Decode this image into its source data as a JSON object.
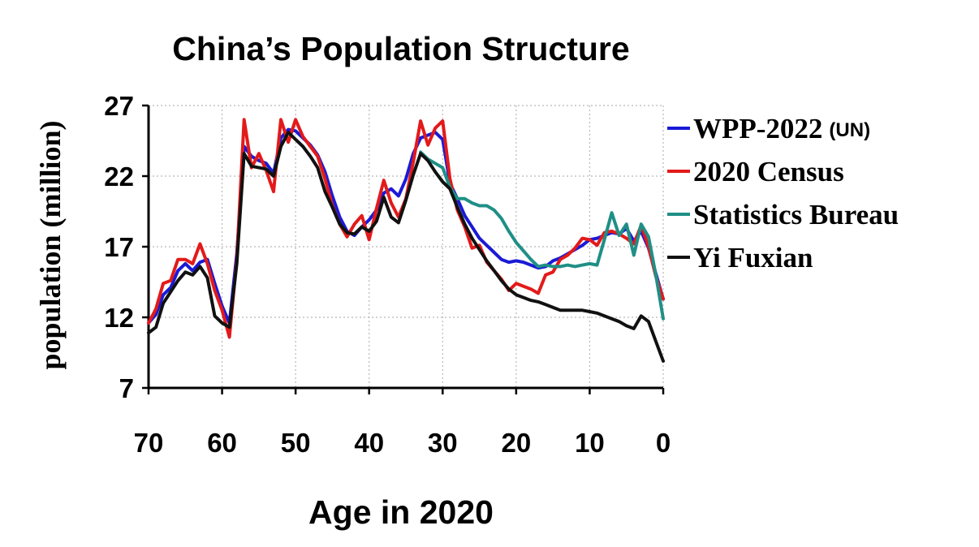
{
  "chart_data": {
    "type": "line",
    "title": "China’s Population Structure",
    "xlabel": "Age in 2020",
    "ylabel": "population (million)",
    "x_reversed": true,
    "xlim": [
      70,
      0
    ],
    "ylim": [
      7,
      27
    ],
    "xticks": [
      70,
      60,
      50,
      40,
      30,
      20,
      10,
      0
    ],
    "yticks": [
      7,
      12,
      17,
      22,
      27
    ],
    "grid": true,
    "legend_position": "right",
    "series": [
      {
        "name": "WPP-2022",
        "name_note": "(UN)",
        "color": "#1a1ad6",
        "points": [
          [
            70,
            11.6
          ],
          [
            69,
            12.2
          ],
          [
            68,
            13.6
          ],
          [
            67,
            14.1
          ],
          [
            66,
            15.3
          ],
          [
            65,
            15.8
          ],
          [
            64,
            15.3
          ],
          [
            63,
            15.9
          ],
          [
            62,
            16.1
          ],
          [
            61,
            14.4
          ],
          [
            60,
            12.8
          ],
          [
            59,
            11.6
          ],
          [
            58,
            16.5
          ],
          [
            57,
            24.1
          ],
          [
            56,
            23.4
          ],
          [
            55,
            23.1
          ],
          [
            54,
            22.9
          ],
          [
            53,
            22.2
          ],
          [
            52,
            24.7
          ],
          [
            51,
            25.3
          ],
          [
            50,
            25.2
          ],
          [
            49,
            24.7
          ],
          [
            48,
            24.2
          ],
          [
            47,
            23.5
          ],
          [
            46,
            22.3
          ],
          [
            45,
            20.6
          ],
          [
            44,
            19.1
          ],
          [
            43,
            18.1
          ],
          [
            42,
            17.8
          ],
          [
            41,
            18.4
          ],
          [
            40,
            18.9
          ],
          [
            39,
            19.6
          ],
          [
            38,
            20.8
          ],
          [
            37,
            21.1
          ],
          [
            36,
            20.6
          ],
          [
            35,
            21.8
          ],
          [
            34,
            23.6
          ],
          [
            33,
            24.7
          ],
          [
            32,
            24.9
          ],
          [
            31,
            25.1
          ],
          [
            30,
            24.6
          ],
          [
            29,
            21.5
          ],
          [
            28,
            20.4
          ],
          [
            27,
            19.2
          ],
          [
            26,
            18.4
          ],
          [
            25,
            17.6
          ],
          [
            24,
            17.1
          ],
          [
            23,
            16.6
          ],
          [
            22,
            16.1
          ],
          [
            21,
            15.9
          ],
          [
            20,
            16.0
          ],
          [
            19,
            15.9
          ],
          [
            18,
            15.7
          ],
          [
            17,
            15.5
          ],
          [
            16,
            15.6
          ],
          [
            15,
            16.0
          ],
          [
            14,
            16.2
          ],
          [
            13,
            16.5
          ],
          [
            12,
            16.8
          ],
          [
            11,
            17.1
          ],
          [
            10,
            17.5
          ],
          [
            9,
            17.6
          ],
          [
            8,
            17.8
          ],
          [
            7,
            18.0
          ],
          [
            6,
            17.9
          ],
          [
            5,
            18.3
          ],
          [
            4,
            17.4
          ],
          [
            3,
            18.1
          ],
          [
            2,
            16.9
          ],
          [
            1,
            15.1
          ],
          [
            0,
            13.3
          ]
        ]
      },
      {
        "name": "2020 Census",
        "color": "#e31a1a",
        "points": [
          [
            70,
            11.6
          ],
          [
            69,
            12.6
          ],
          [
            68,
            14.4
          ],
          [
            67,
            14.6
          ],
          [
            66,
            16.1
          ],
          [
            65,
            16.1
          ],
          [
            64,
            15.8
          ],
          [
            63,
            17.2
          ],
          [
            62,
            15.8
          ],
          [
            61,
            13.9
          ],
          [
            60,
            12.5
          ],
          [
            59,
            10.6
          ],
          [
            58,
            16.1
          ],
          [
            57,
            26.0
          ],
          [
            56,
            22.6
          ],
          [
            55,
            23.6
          ],
          [
            54,
            22.4
          ],
          [
            53,
            20.9
          ],
          [
            52,
            26.0
          ],
          [
            51,
            24.4
          ],
          [
            50,
            26.0
          ],
          [
            49,
            24.8
          ],
          [
            48,
            24.1
          ],
          [
            47,
            23.4
          ],
          [
            46,
            21.8
          ],
          [
            45,
            19.9
          ],
          [
            44,
            18.6
          ],
          [
            43,
            17.7
          ],
          [
            42,
            18.6
          ],
          [
            41,
            19.2
          ],
          [
            40,
            17.5
          ],
          [
            39,
            19.7
          ],
          [
            38,
            21.7
          ],
          [
            37,
            20.1
          ],
          [
            36,
            19.1
          ],
          [
            35,
            20.4
          ],
          [
            34,
            23.0
          ],
          [
            33,
            25.9
          ],
          [
            32,
            24.2
          ],
          [
            31,
            25.4
          ],
          [
            30,
            25.9
          ],
          [
            29,
            21.8
          ],
          [
            28,
            19.6
          ],
          [
            27,
            18.4
          ],
          [
            26,
            16.9
          ],
          [
            25,
            17.1
          ],
          [
            24,
            15.9
          ],
          [
            23,
            15.3
          ],
          [
            22,
            14.7
          ],
          [
            21,
            13.9
          ],
          [
            20,
            14.4
          ],
          [
            19,
            14.2
          ],
          [
            18,
            14.0
          ],
          [
            17,
            13.7
          ],
          [
            16,
            15.0
          ],
          [
            15,
            15.2
          ],
          [
            14,
            16.1
          ],
          [
            13,
            16.4
          ],
          [
            12,
            16.9
          ],
          [
            11,
            17.6
          ],
          [
            10,
            17.5
          ],
          [
            9,
            17.1
          ],
          [
            8,
            18.0
          ],
          [
            7,
            18.1
          ],
          [
            6,
            17.9
          ],
          [
            5,
            17.6
          ],
          [
            4,
            17.2
          ],
          [
            3,
            18.5
          ],
          [
            2,
            17.0
          ],
          [
            1,
            14.9
          ],
          [
            0,
            13.3
          ]
        ]
      },
      {
        "name": "Statistics Bureau",
        "color": "#1f8f86",
        "points": [
          [
            33,
            23.7
          ],
          [
            32,
            23.2
          ],
          [
            31,
            22.9
          ],
          [
            30,
            22.6
          ],
          [
            29,
            21.2
          ],
          [
            28,
            20.4
          ],
          [
            27,
            20.4
          ],
          [
            26,
            20.1
          ],
          [
            25,
            19.9
          ],
          [
            24,
            19.9
          ],
          [
            23,
            19.6
          ],
          [
            22,
            19.0
          ],
          [
            21,
            18.1
          ],
          [
            20,
            17.3
          ],
          [
            19,
            16.7
          ],
          [
            18,
            16.1
          ],
          [
            17,
            15.6
          ],
          [
            16,
            15.7
          ],
          [
            15,
            15.6
          ],
          [
            14,
            15.6
          ],
          [
            13,
            15.7
          ],
          [
            12,
            15.6
          ],
          [
            11,
            15.7
          ],
          [
            10,
            15.8
          ],
          [
            9,
            15.7
          ],
          [
            8,
            17.5
          ],
          [
            7,
            19.4
          ],
          [
            6,
            17.8
          ],
          [
            5,
            18.6
          ],
          [
            4,
            16.4
          ],
          [
            3,
            18.6
          ],
          [
            2,
            17.7
          ],
          [
            1,
            15.0
          ],
          [
            0,
            11.9
          ]
        ]
      },
      {
        "name": "Yi Fuxian",
        "color": "#111111",
        "points": [
          [
            70,
            10.9
          ],
          [
            69,
            11.3
          ],
          [
            68,
            13.0
          ],
          [
            67,
            13.8
          ],
          [
            66,
            14.6
          ],
          [
            65,
            15.2
          ],
          [
            64,
            15.0
          ],
          [
            63,
            15.6
          ],
          [
            62,
            14.8
          ],
          [
            61,
            12.1
          ],
          [
            60,
            11.6
          ],
          [
            59,
            11.3
          ],
          [
            58,
            15.8
          ],
          [
            57,
            23.6
          ],
          [
            56,
            22.7
          ],
          [
            55,
            22.6
          ],
          [
            54,
            22.5
          ],
          [
            53,
            22.0
          ],
          [
            52,
            24.1
          ],
          [
            51,
            25.1
          ],
          [
            50,
            24.6
          ],
          [
            49,
            24.1
          ],
          [
            48,
            23.4
          ],
          [
            47,
            22.6
          ],
          [
            46,
            20.9
          ],
          [
            45,
            19.8
          ],
          [
            44,
            18.6
          ],
          [
            43,
            18.0
          ],
          [
            42,
            17.9
          ],
          [
            41,
            18.4
          ],
          [
            40,
            18.1
          ],
          [
            39,
            18.8
          ],
          [
            38,
            20.5
          ],
          [
            37,
            19.1
          ],
          [
            36,
            18.7
          ],
          [
            35,
            20.3
          ],
          [
            34,
            22.1
          ],
          [
            33,
            23.6
          ],
          [
            32,
            23.1
          ],
          [
            31,
            22.3
          ],
          [
            30,
            21.6
          ],
          [
            29,
            21.1
          ],
          [
            28,
            19.8
          ],
          [
            27,
            18.6
          ],
          [
            26,
            17.6
          ],
          [
            25,
            16.8
          ],
          [
            24,
            16.0
          ],
          [
            23,
            15.3
          ],
          [
            22,
            14.6
          ],
          [
            21,
            14.0
          ],
          [
            20,
            13.6
          ],
          [
            19,
            13.4
          ],
          [
            18,
            13.2
          ],
          [
            17,
            13.1
          ],
          [
            16,
            12.9
          ],
          [
            15,
            12.7
          ],
          [
            14,
            12.5
          ],
          [
            13,
            12.5
          ],
          [
            12,
            12.5
          ],
          [
            11,
            12.5
          ],
          [
            10,
            12.4
          ],
          [
            9,
            12.3
          ],
          [
            8,
            12.1
          ],
          [
            7,
            11.9
          ],
          [
            6,
            11.7
          ],
          [
            5,
            11.4
          ],
          [
            4,
            11.2
          ],
          [
            3,
            12.1
          ],
          [
            2,
            11.7
          ],
          [
            1,
            10.3
          ],
          [
            0,
            8.9
          ]
        ]
      }
    ]
  }
}
